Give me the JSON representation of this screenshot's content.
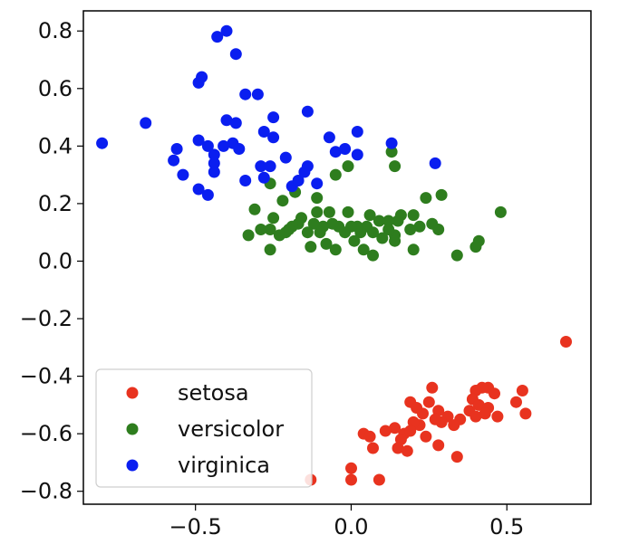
{
  "chart_data": {
    "type": "scatter",
    "title": "",
    "xlabel": "",
    "ylabel": "",
    "xlim": [
      -0.86,
      0.77
    ],
    "ylim": [
      -0.845,
      0.87
    ],
    "grid": false,
    "legend_position": "lower-left",
    "x_ticks": [
      -0.5,
      0.0,
      0.5
    ],
    "x_tick_labels": [
      "−0.5",
      "0.0",
      "0.5"
    ],
    "y_ticks": [
      0.8,
      0.6,
      0.4,
      0.2,
      0.0,
      -0.2,
      -0.4,
      -0.6,
      -0.8
    ],
    "y_tick_labels": [
      "0.8",
      "0.6",
      "0.4",
      "0.2",
      "0.0",
      "−0.2",
      "−0.4",
      "−0.6",
      "−0.8"
    ],
    "series": [
      {
        "name": "setosa",
        "color": "#e8331f",
        "points": [
          [
            0.69,
            -0.28
          ],
          [
            0.55,
            -0.45
          ],
          [
            0.53,
            -0.49
          ],
          [
            0.56,
            -0.53
          ],
          [
            0.47,
            -0.54
          ],
          [
            0.44,
            -0.44
          ],
          [
            0.42,
            -0.44
          ],
          [
            0.46,
            -0.46
          ],
          [
            0.4,
            -0.45
          ],
          [
            0.39,
            -0.48
          ],
          [
            0.41,
            -0.5
          ],
          [
            0.44,
            -0.51
          ],
          [
            0.38,
            -0.52
          ],
          [
            0.43,
            -0.53
          ],
          [
            0.4,
            -0.54
          ],
          [
            0.35,
            -0.55
          ],
          [
            0.31,
            -0.54
          ],
          [
            0.33,
            -0.57
          ],
          [
            0.29,
            -0.56
          ],
          [
            0.28,
            -0.52
          ],
          [
            0.26,
            -0.44
          ],
          [
            0.25,
            -0.49
          ],
          [
            0.27,
            -0.55
          ],
          [
            0.23,
            -0.53
          ],
          [
            0.22,
            -0.57
          ],
          [
            0.19,
            -0.49
          ],
          [
            0.21,
            -0.51
          ],
          [
            0.2,
            -0.56
          ],
          [
            0.17,
            -0.6
          ],
          [
            0.19,
            -0.59
          ],
          [
            0.16,
            -0.62
          ],
          [
            0.15,
            -0.65
          ],
          [
            0.18,
            -0.66
          ],
          [
            0.24,
            -0.61
          ],
          [
            0.28,
            -0.64
          ],
          [
            0.34,
            -0.68
          ],
          [
            0.14,
            -0.58
          ],
          [
            0.11,
            -0.59
          ],
          [
            0.04,
            -0.6
          ],
          [
            0.06,
            -0.61
          ],
          [
            0.07,
            -0.65
          ],
          [
            0.0,
            -0.72
          ],
          [
            0.0,
            -0.76
          ],
          [
            0.09,
            -0.76
          ],
          [
            -0.13,
            -0.76
          ]
        ]
      },
      {
        "name": "versicolor",
        "color": "#2e7d1e",
        "points": [
          [
            0.48,
            0.17
          ],
          [
            0.41,
            0.07
          ],
          [
            0.4,
            0.05
          ],
          [
            0.34,
            0.02
          ],
          [
            0.29,
            0.23
          ],
          [
            0.28,
            0.11
          ],
          [
            0.26,
            0.13
          ],
          [
            0.24,
            0.22
          ],
          [
            0.22,
            0.12
          ],
          [
            0.2,
            0.16
          ],
          [
            0.19,
            0.11
          ],
          [
            0.2,
            0.04
          ],
          [
            0.16,
            0.16
          ],
          [
            0.15,
            0.14
          ],
          [
            0.14,
            0.09
          ],
          [
            0.14,
            0.07
          ],
          [
            0.12,
            0.14
          ],
          [
            0.12,
            0.11
          ],
          [
            0.1,
            0.08
          ],
          [
            0.09,
            0.14
          ],
          [
            0.07,
            0.1
          ],
          [
            0.06,
            0.16
          ],
          [
            0.05,
            0.12
          ],
          [
            0.04,
            0.04
          ],
          [
            0.07,
            0.02
          ],
          [
            0.03,
            0.1
          ],
          [
            0.02,
            0.12
          ],
          [
            0.01,
            0.07
          ],
          [
            0.0,
            0.12
          ],
          [
            -0.01,
            0.17
          ],
          [
            -0.02,
            0.1
          ],
          [
            -0.04,
            0.12
          ],
          [
            -0.05,
            0.04
          ],
          [
            -0.06,
            0.13
          ],
          [
            -0.07,
            0.17
          ],
          [
            -0.08,
            0.06
          ],
          [
            -0.09,
            0.12
          ],
          [
            -0.1,
            0.1
          ],
          [
            -0.11,
            0.17
          ],
          [
            -0.12,
            0.13
          ],
          [
            -0.13,
            0.05
          ],
          [
            -0.14,
            0.1
          ],
          [
            -0.16,
            0.15
          ],
          [
            -0.17,
            0.13
          ],
          [
            -0.19,
            0.12
          ],
          [
            -0.2,
            0.11
          ],
          [
            -0.21,
            0.1
          ],
          [
            -0.23,
            0.09
          ],
          [
            -0.25,
            0.15
          ],
          [
            -0.26,
            0.11
          ],
          [
            -0.26,
            0.04
          ],
          [
            -0.29,
            0.11
          ],
          [
            -0.31,
            0.18
          ],
          [
            -0.33,
            0.09
          ],
          [
            -0.26,
            0.27
          ],
          [
            -0.22,
            0.21
          ],
          [
            -0.18,
            0.24
          ],
          [
            -0.11,
            0.22
          ],
          [
            -0.05,
            0.3
          ],
          [
            -0.01,
            0.33
          ],
          [
            0.13,
            0.38
          ],
          [
            0.14,
            0.33
          ]
        ]
      },
      {
        "name": "virginica",
        "color": "#0a1ef0",
        "points": [
          [
            -0.8,
            0.41
          ],
          [
            -0.66,
            0.48
          ],
          [
            -0.56,
            0.39
          ],
          [
            -0.57,
            0.35
          ],
          [
            -0.54,
            0.3
          ],
          [
            -0.49,
            0.25
          ],
          [
            -0.46,
            0.23
          ],
          [
            -0.49,
            0.42
          ],
          [
            -0.46,
            0.4
          ],
          [
            -0.44,
            0.37
          ],
          [
            -0.44,
            0.34
          ],
          [
            -0.44,
            0.31
          ],
          [
            -0.49,
            0.62
          ],
          [
            -0.48,
            0.64
          ],
          [
            -0.43,
            0.78
          ],
          [
            -0.4,
            0.8
          ],
          [
            -0.37,
            0.72
          ],
          [
            -0.4,
            0.49
          ],
          [
            -0.37,
            0.48
          ],
          [
            -0.34,
            0.58
          ],
          [
            -0.3,
            0.58
          ],
          [
            -0.41,
            0.4
          ],
          [
            -0.38,
            0.41
          ],
          [
            -0.36,
            0.39
          ],
          [
            -0.34,
            0.28
          ],
          [
            -0.29,
            0.33
          ],
          [
            -0.28,
            0.29
          ],
          [
            -0.26,
            0.33
          ],
          [
            -0.28,
            0.45
          ],
          [
            -0.25,
            0.43
          ],
          [
            -0.25,
            0.5
          ],
          [
            -0.21,
            0.36
          ],
          [
            -0.19,
            0.26
          ],
          [
            -0.17,
            0.28
          ],
          [
            -0.15,
            0.31
          ],
          [
            -0.14,
            0.33
          ],
          [
            -0.14,
            0.52
          ],
          [
            -0.11,
            0.27
          ],
          [
            -0.07,
            0.43
          ],
          [
            -0.05,
            0.38
          ],
          [
            -0.02,
            0.39
          ],
          [
            0.02,
            0.37
          ],
          [
            0.02,
            0.45
          ],
          [
            0.13,
            0.41
          ],
          [
            0.27,
            0.34
          ]
        ]
      }
    ]
  }
}
